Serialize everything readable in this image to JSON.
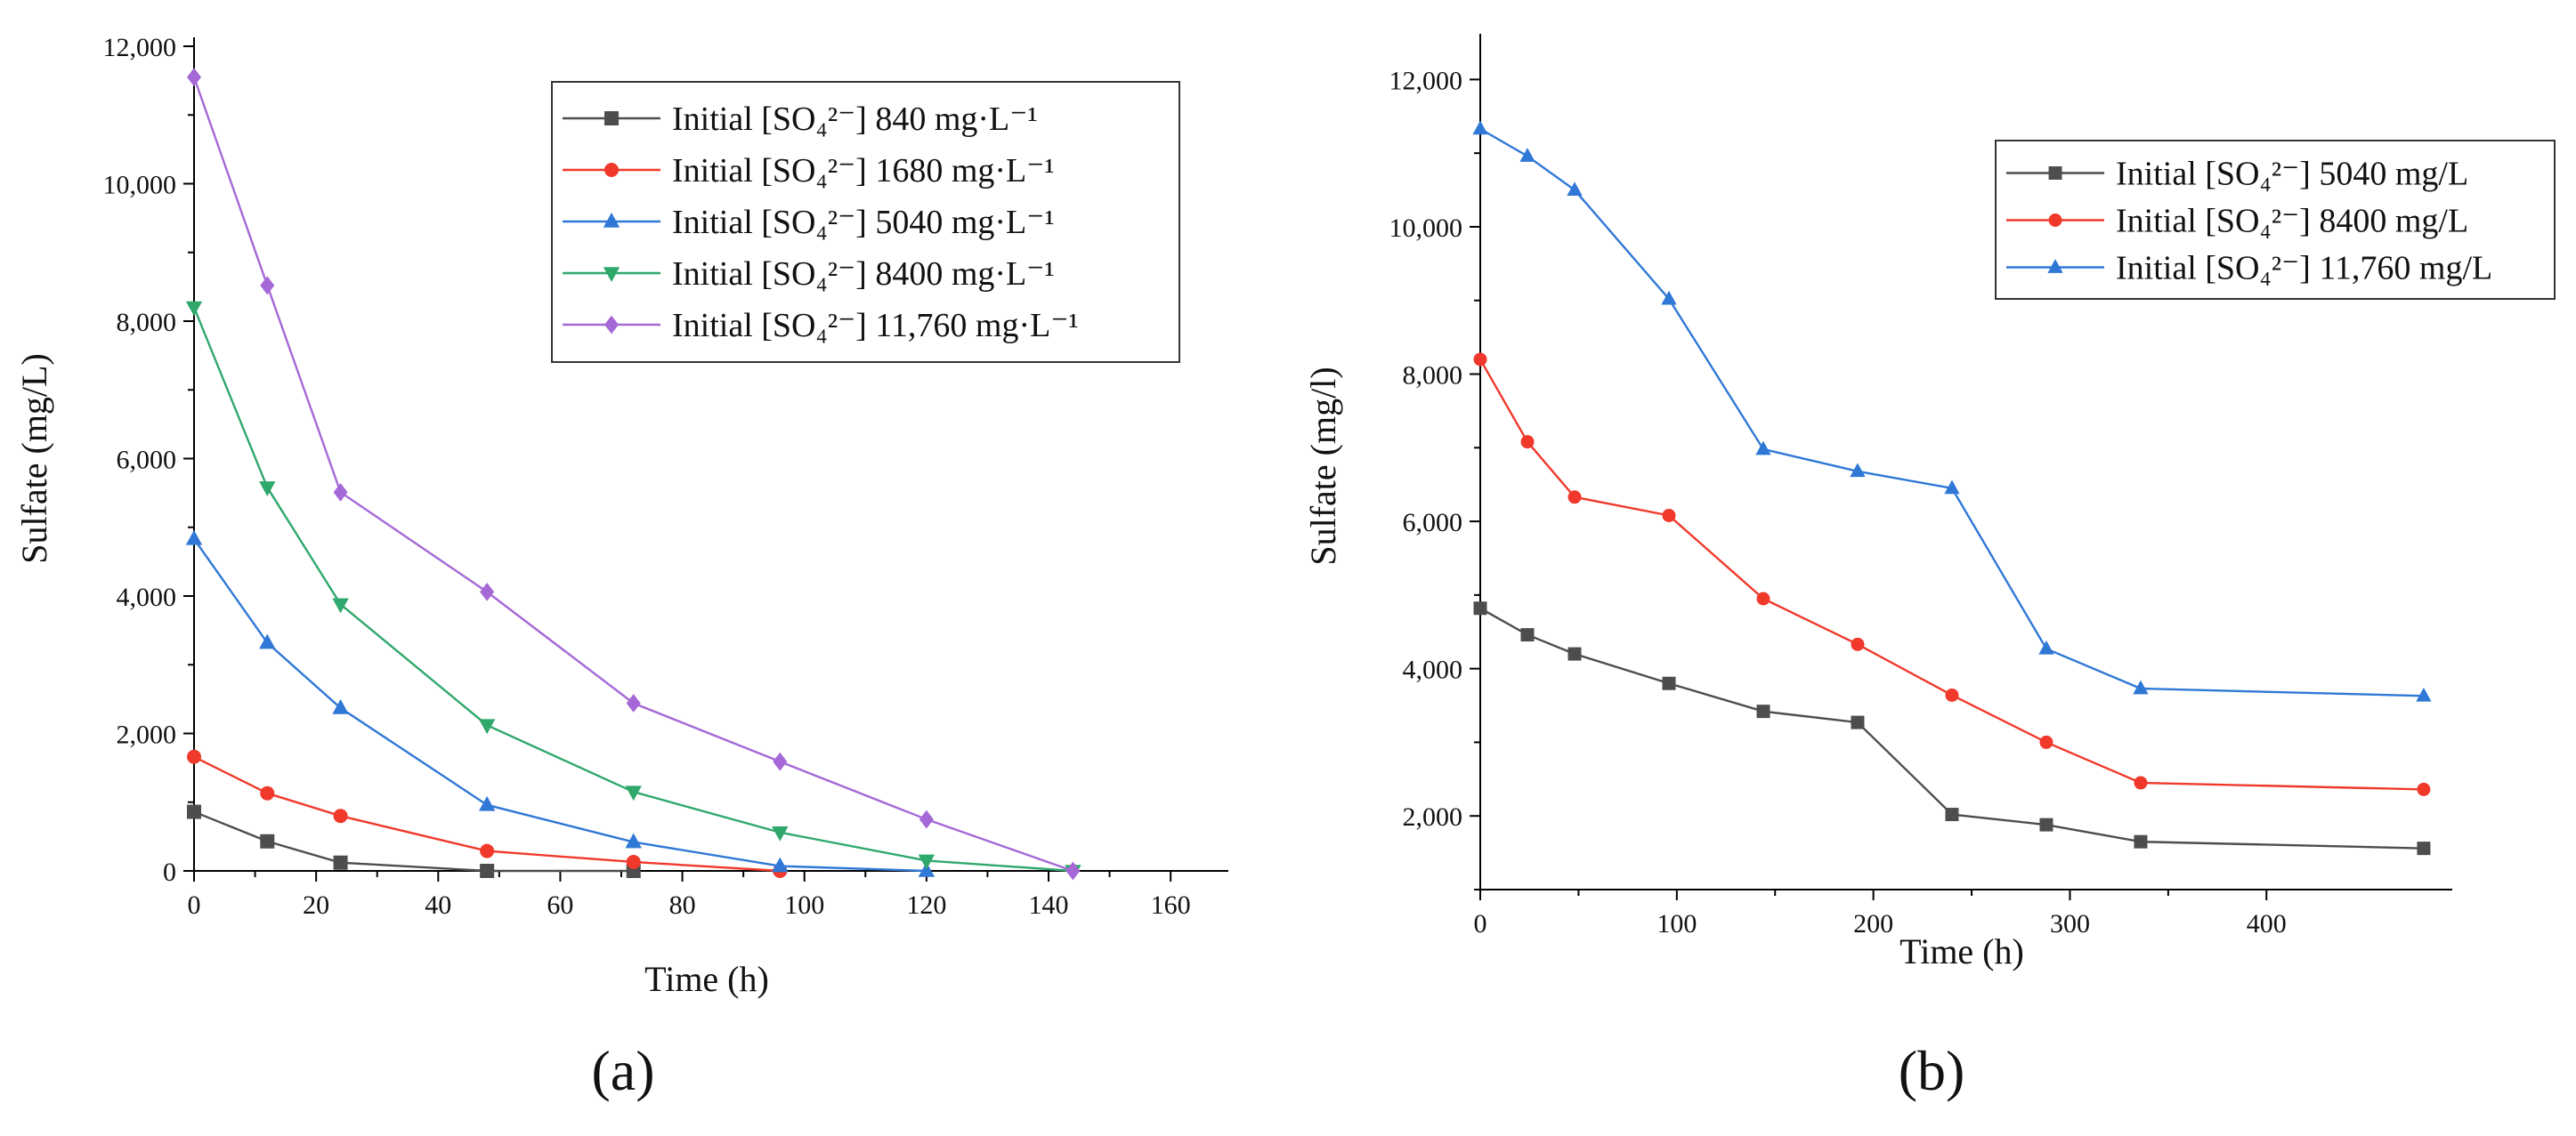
{
  "figure": {
    "panel_labels": [
      "(a)",
      "(b)"
    ]
  },
  "chart_data": [
    {
      "type": "line",
      "panel": "(a)",
      "title": "",
      "xlabel": "Time (h)",
      "ylabel": "Sulfate (mg/L)",
      "xlim": [
        0,
        168
      ],
      "ylim": [
        0,
        12000
      ],
      "x_ticks": [
        0,
        20,
        40,
        60,
        80,
        100,
        120,
        140,
        160
      ],
      "x_tick_labels": [
        "0",
        "20",
        "40",
        "60",
        "80",
        "100",
        "120",
        "140",
        "160"
      ],
      "y_ticks": [
        0,
        2000,
        4000,
        6000,
        8000,
        10000,
        12000
      ],
      "y_tick_labels": [
        "0",
        "2,000",
        "4,000",
        "6,000",
        "8,000",
        "10,000",
        "12,000"
      ],
      "legend_position": "top-right",
      "grid": false,
      "series": [
        {
          "name": "Initial [SO₄²⁻] 840 mg·L⁻¹",
          "color": "#4d4d4d",
          "marker": "square",
          "x": [
            0,
            12,
            24,
            48,
            72
          ],
          "y": [
            860,
            430,
            120,
            0,
            0
          ]
        },
        {
          "name": "Initial [SO₄²⁻] 1680 mg·L⁻¹",
          "color": "#f0392b",
          "marker": "circle",
          "x": [
            0,
            12,
            24,
            48,
            72,
            96
          ],
          "y": [
            1660,
            1130,
            800,
            290,
            130,
            0
          ]
        },
        {
          "name": "Initial [SO₄²⁻] 5040 mg·L⁻¹",
          "color": "#2f78d6",
          "marker": "triangle-up",
          "x": [
            0,
            12,
            24,
            48,
            72,
            96,
            120
          ],
          "y": [
            4830,
            3320,
            2370,
            960,
            420,
            70,
            0
          ]
        },
        {
          "name": "Initial [SO₄²⁻] 8400 mg·L⁻¹",
          "color": "#2fa86c",
          "marker": "triangle-down",
          "x": [
            0,
            12,
            24,
            48,
            72,
            96,
            120,
            144
          ],
          "y": [
            8200,
            5580,
            3880,
            2120,
            1150,
            560,
            150,
            0
          ]
        },
        {
          "name": "Initial [SO₄²⁻] 11,760 mg·L⁻¹",
          "color": "#a568d6",
          "marker": "diamond",
          "x": [
            0,
            12,
            24,
            48,
            72,
            96,
            120,
            144
          ],
          "y": [
            11550,
            8520,
            5510,
            4060,
            2440,
            1590,
            750,
            0
          ]
        }
      ]
    },
    {
      "type": "line",
      "panel": "(b)",
      "title": "",
      "xlabel": "Time (h)",
      "ylabel": "Sulfate (mg/l)",
      "xlim": [
        0,
        490
      ],
      "ylim": [
        1000,
        12500
      ],
      "x_ticks": [
        0,
        100,
        200,
        300,
        400
      ],
      "x_tick_labels": [
        "0",
        "100",
        "200",
        "300",
        "400"
      ],
      "y_ticks": [
        2000,
        4000,
        6000,
        8000,
        10000,
        12000
      ],
      "y_tick_labels": [
        "2,000",
        "4,000",
        "6,000",
        "8,000",
        "10,000",
        "12,000"
      ],
      "legend_position": "top-right",
      "grid": false,
      "series": [
        {
          "name": "Initial [SO₄²⁻] 5040 mg/L",
          "color": "#4d4d4d",
          "marker": "square",
          "x": [
            0,
            24,
            48,
            96,
            144,
            192,
            240,
            288,
            336,
            480
          ],
          "y": [
            4820,
            4460,
            4200,
            3800,
            3420,
            3270,
            2020,
            1880,
            1650,
            1560
          ]
        },
        {
          "name": "Initial [SO₄²⁻] 8400 mg/L",
          "color": "#f0392b",
          "marker": "circle",
          "x": [
            0,
            24,
            48,
            96,
            144,
            192,
            240,
            288,
            336,
            480
          ],
          "y": [
            8200,
            7080,
            6330,
            6080,
            4950,
            4330,
            3640,
            3000,
            2450,
            2360
          ]
        },
        {
          "name": "Initial [SO₄²⁻] 11,760 mg/L",
          "color": "#2f78d6",
          "marker": "triangle-up",
          "x": [
            0,
            24,
            48,
            96,
            144,
            192,
            240,
            288,
            336,
            480
          ],
          "y": [
            11330,
            10960,
            10500,
            9020,
            6980,
            6680,
            6450,
            4270,
            3730,
            3630
          ]
        }
      ]
    }
  ]
}
